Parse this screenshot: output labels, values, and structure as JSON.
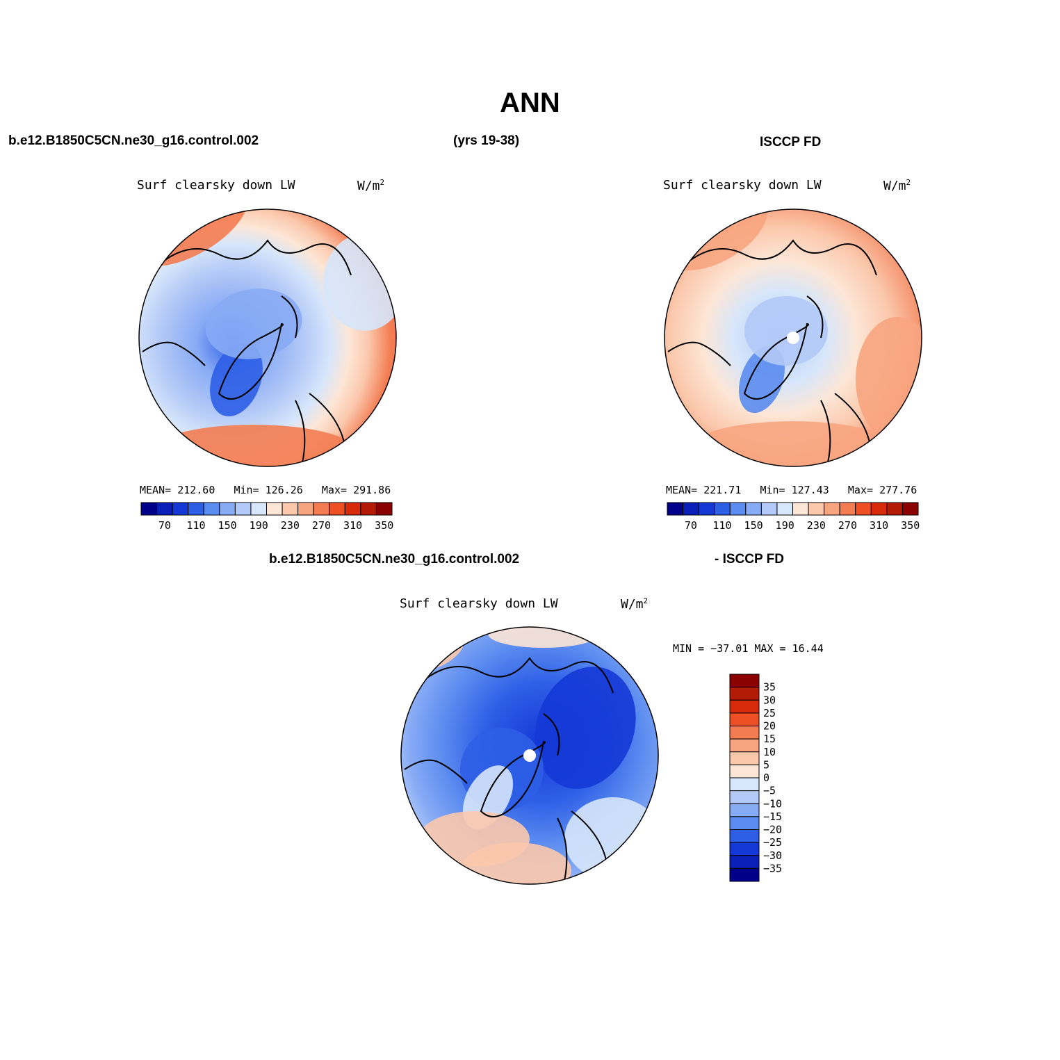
{
  "title": "ANN",
  "top_left_case": "b.e12.B1850C5CN.ne30_g16.control.002",
  "top_years": "(yrs 19-38)",
  "top_right_case": "ISCCP FD",
  "bottom_case": "b.e12.B1850C5CN.ne30_g16.control.002",
  "bottom_suffix": "- ISCCP FD",
  "colors": {
    "levels": [
      "#00008b",
      "#0a1fb8",
      "#1438d6",
      "#2e5ee6",
      "#5b8cf0",
      "#88abf5",
      "#b3c9f7",
      "#d6e6fb",
      "#fde6d6",
      "#fbc8ac",
      "#f7a57f",
      "#f37c52",
      "#ee4f24",
      "#d62a0b",
      "#b31b06",
      "#8b0000"
    ]
  },
  "chart_data": [
    {
      "type": "heatmap",
      "name": "model",
      "variable": "Surf clearsky down LW",
      "units": "W/m",
      "units_sup": "2",
      "stats": {
        "mean_label": "MEAN=",
        "mean": "212.60",
        "min_label": "Min=",
        "min": "126.26",
        "max_label": "Max=",
        "max": "291.86"
      },
      "colorbar_ticks": [
        "70",
        "110",
        "150",
        "190",
        "230",
        "270",
        "310",
        "350"
      ]
    },
    {
      "type": "heatmap",
      "name": "obs",
      "variable": "Surf clearsky down LW",
      "units": "W/m",
      "units_sup": "2",
      "stats": {
        "mean_label": "MEAN=",
        "mean": "221.71",
        "min_label": "Min=",
        "min": "127.43",
        "max_label": "Max=",
        "max": "277.76"
      },
      "colorbar_ticks": [
        "70",
        "110",
        "150",
        "190",
        "230",
        "270",
        "310",
        "350"
      ]
    },
    {
      "type": "heatmap",
      "name": "difference",
      "variable": "Surf clearsky down LW",
      "units": "W/m",
      "units_sup": "2",
      "minmax": "MIN = −37.01 MAX =  16.44",
      "colorbar_ticks": [
        "35",
        "30",
        "25",
        "20",
        "15",
        "10",
        "5",
        "0",
        "−5",
        "−10",
        "−15",
        "−20",
        "−25",
        "−30",
        "−35"
      ]
    }
  ]
}
